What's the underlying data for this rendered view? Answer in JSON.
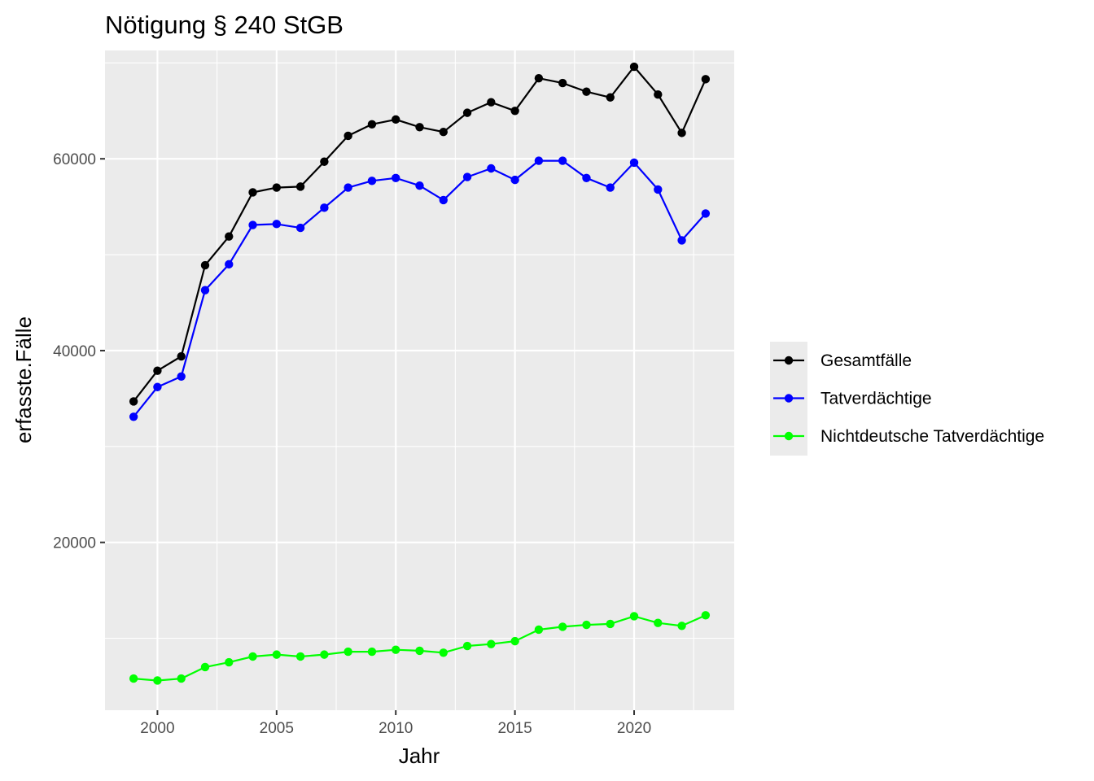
{
  "chart_data": {
    "type": "line",
    "title": "Nötigung § 240 StGB",
    "xlabel": "Jahr",
    "ylabel": "erfasste.Fälle",
    "x": [
      1999,
      2000,
      2001,
      2002,
      2003,
      2004,
      2005,
      2006,
      2007,
      2008,
      2009,
      2010,
      2011,
      2012,
      2013,
      2014,
      2015,
      2016,
      2017,
      2018,
      2019,
      2020,
      2021,
      2022,
      2023
    ],
    "xlim": [
      1997.8,
      2024.2
    ],
    "ylim": [
      2500,
      71300
    ],
    "x_ticks": [
      2000,
      2005,
      2010,
      2015,
      2020
    ],
    "y_ticks": [
      20000,
      40000,
      60000
    ],
    "grid": true,
    "legend_position": "right",
    "series": [
      {
        "name": "Gesamtfälle",
        "color": "#000000",
        "values": [
          34700,
          37900,
          39400,
          48900,
          51900,
          56500,
          57000,
          57100,
          59700,
          62400,
          63600,
          64100,
          63300,
          62800,
          64800,
          65900,
          65000,
          68400,
          67900,
          67000,
          66400,
          69600,
          66700,
          62700,
          68300
        ]
      },
      {
        "name": "Tatverdächtige",
        "color": "#0000ff",
        "values": [
          33100,
          36200,
          37300,
          46300,
          49000,
          53100,
          53200,
          52800,
          54900,
          57000,
          57700,
          58000,
          57200,
          55700,
          58100,
          59000,
          57800,
          59800,
          59800,
          58000,
          57000,
          59600,
          56800,
          51500,
          54300
        ]
      },
      {
        "name": "Nichtdeutsche Tatverdächtige",
        "color": "#00ff00",
        "values": [
          5800,
          5600,
          5800,
          7000,
          7500,
          8100,
          8300,
          8100,
          8300,
          8600,
          8600,
          8800,
          8700,
          8500,
          9200,
          9400,
          9700,
          10900,
          11200,
          11400,
          11500,
          12300,
          11600,
          11300,
          12400
        ]
      }
    ]
  }
}
